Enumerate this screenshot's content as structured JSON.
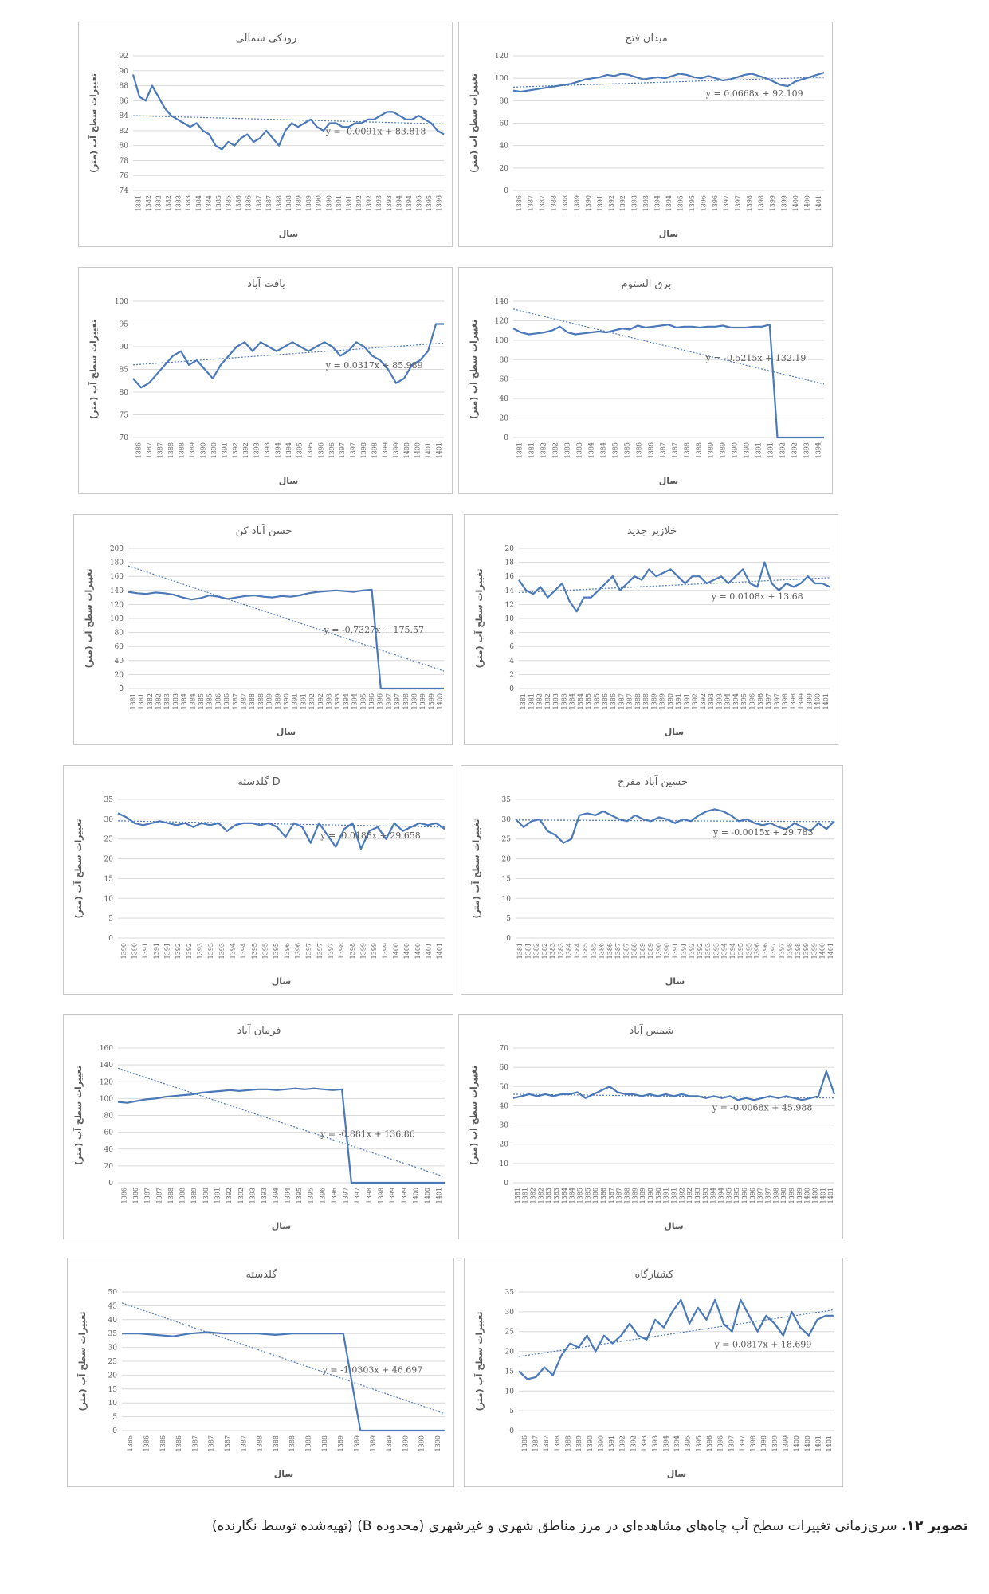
{
  "caption": {
    "prefix": "تصویر ۱۲.",
    "text": " سری‌زمانی تغییرات سطح آب چاه‌های مشاهده‌ای در مرز مناطق شهری و غیرشهری (محدوده B) (تهیه‌شده توسط نگارنده)"
  },
  "colors": {
    "series": "#4a78b8",
    "trend": "#4a78b8",
    "grid": "#d9d9d9"
  },
  "chart_data": [
    {
      "id": "rudaki",
      "type": "line",
      "title": "رودکی شمالی",
      "xlabel": "سال",
      "ylabel": "تغییرات سطح آب (متر)",
      "ylim": [
        74,
        92
      ],
      "ystep": 2,
      "trend_equation": "y = -0.0091x + 83.818",
      "trend": [
        84.0,
        82.9
      ],
      "xticks": [
        "1381",
        "1382",
        "1382",
        "1382",
        "1383",
        "1383",
        "1384",
        "1384",
        "1385",
        "1385",
        "1386",
        "1386",
        "1387",
        "1387",
        "1388",
        "1388",
        "1389",
        "1389",
        "1390",
        "1390",
        "1391",
        "1391",
        "1392",
        "1392",
        "1393",
        "1393",
        "1394",
        "1394",
        "1395",
        "1395",
        "1396"
      ],
      "values": [
        89.5,
        86.5,
        86,
        88,
        86.5,
        85,
        84,
        83.5,
        83,
        82.5,
        83,
        82,
        81.5,
        80,
        79.5,
        80.5,
        80,
        81,
        81.5,
        80.5,
        81,
        82,
        81,
        80,
        82,
        83,
        82.5,
        83,
        83.5,
        82.5,
        82,
        83,
        83,
        82.5,
        82.5,
        83,
        83,
        83.5,
        83.5,
        84,
        84.5,
        84.5,
        84,
        83.5,
        83.5,
        84,
        83.5,
        83,
        82,
        81.5
      ]
    },
    {
      "id": "meydan",
      "type": "line",
      "title": "میدان فتح",
      "xlabel": "سال",
      "ylabel": "تغییرات سطح آب (متر)",
      "ylim": [
        0,
        120
      ],
      "ystep": 20,
      "trend_equation": "y = 0.0668x + 92.109",
      "trend": [
        92.1,
        101
      ],
      "xticks": [
        "1386",
        "1387",
        "1387",
        "1388",
        "1388",
        "1389",
        "1390",
        "1391",
        "1392",
        "1392",
        "1393",
        "1393",
        "1394",
        "1394",
        "1395",
        "1395",
        "1396",
        "1396",
        "1397",
        "1397",
        "1398",
        "1398",
        "1399",
        "1399",
        "1400",
        "1400",
        "1401"
      ],
      "values": [
        89,
        88,
        89,
        90,
        91,
        92,
        93,
        94,
        95,
        97,
        99,
        100,
        101,
        103,
        102,
        104,
        103,
        101,
        99,
        100,
        101,
        100,
        102,
        104,
        103,
        101,
        100,
        102,
        100,
        98,
        99,
        101,
        103,
        104,
        102,
        100,
        97,
        94,
        93,
        97,
        99,
        101,
        103,
        105
      ]
    },
    {
      "id": "yaftabad",
      "type": "line",
      "title": "یافت آباد",
      "xlabel": "سال",
      "ylabel": "تغییرات سطح آب (متر)",
      "ylim": [
        70,
        100
      ],
      "ystep": 5,
      "trend_equation": "y = 0.0317x + 85.989",
      "trend": [
        86,
        90.8
      ],
      "xticks": [
        "1386",
        "1387",
        "1387",
        "1388",
        "1388",
        "1389",
        "1390",
        "1390",
        "1391",
        "1392",
        "1392",
        "1393",
        "1393",
        "1394",
        "1394",
        "1395",
        "1395",
        "1396",
        "1396",
        "1397",
        "1397",
        "1398",
        "1398",
        "1399",
        "1399",
        "1400",
        "1400",
        "1401",
        "1401"
      ],
      "values": [
        83,
        81,
        82,
        84,
        86,
        88,
        89,
        86,
        87,
        85,
        83,
        86,
        88,
        90,
        91,
        89,
        91,
        90,
        89,
        90,
        91,
        90,
        89,
        90,
        91,
        90,
        88,
        89,
        91,
        90,
        88,
        87,
        85,
        82,
        83,
        86,
        87,
        89,
        95,
        95
      ]
    },
    {
      "id": "barq",
      "type": "line",
      "title": "برق الستوم",
      "xlabel": "سال",
      "ylabel": "تغییرات سطح آب (متر)",
      "ylim": [
        0,
        140
      ],
      "ystep": 20,
      "trend_equation": "y = -0.5215x + 132.19",
      "trend": [
        132,
        55
      ],
      "xticks": [
        "1381",
        "1381",
        "1382",
        "1382",
        "1383",
        "1383",
        "1384",
        "1384",
        "1385",
        "1385",
        "1386",
        "1386",
        "1387",
        "1387",
        "1388",
        "1388",
        "1389",
        "1389",
        "1390",
        "1390",
        "1391",
        "1391",
        "1392",
        "1392",
        "1393",
        "1394"
      ],
      "values": [
        112,
        108,
        106,
        107,
        108,
        110,
        114,
        108,
        106,
        107,
        108,
        109,
        108,
        110,
        112,
        111,
        115,
        113,
        114,
        115,
        116,
        113,
        114,
        114,
        113,
        114,
        114,
        115,
        113,
        113,
        113,
        114,
        114,
        116,
        0,
        0,
        0,
        0,
        0,
        0,
        0
      ]
    },
    {
      "id": "hasanabad",
      "type": "line",
      "title": "حسن آباد کن",
      "xlabel": "سال",
      "ylabel": "تغییرات سطح آب (متر)",
      "ylim": [
        0,
        200
      ],
      "ystep": 20,
      "trend_equation": "y = -0.7327x + 175.57",
      "trend": [
        175,
        25
      ],
      "xticks": [
        "1381",
        "1381",
        "1382",
        "1382",
        "1383",
        "1383",
        "1384",
        "1384",
        "1385",
        "1385",
        "1386",
        "1386",
        "1387",
        "1387",
        "1388",
        "1388",
        "1389",
        "1389",
        "1390",
        "1391",
        "1391",
        "1392",
        "1392",
        "1393",
        "1393",
        "1394",
        "1394",
        "1395",
        "1396",
        "1396",
        "1397",
        "1397",
        "1398",
        "1398",
        "1399",
        "1399",
        "1400"
      ],
      "values": [
        138,
        136,
        135,
        137,
        136,
        134,
        130,
        127,
        129,
        133,
        131,
        128,
        130,
        132,
        133,
        131,
        130,
        132,
        131,
        133,
        136,
        138,
        139,
        140,
        139,
        138,
        140,
        141,
        0,
        0,
        0,
        0,
        0,
        0,
        0,
        0
      ]
    },
    {
      "id": "khalazir",
      "type": "line",
      "title": "خلازیر جدید",
      "xlabel": "سال",
      "ylabel": "تغییرات سطح آب (متر)",
      "ylim": [
        0,
        20
      ],
      "ystep": 2,
      "trend_equation": "y = 0.0108x + 13.68",
      "trend": [
        13.7,
        15.8
      ],
      "xticks": [
        "1381",
        "1381",
        "1382",
        "1382",
        "1383",
        "1383",
        "1384",
        "1384",
        "1385",
        "1385",
        "1386",
        "1386",
        "1387",
        "1387",
        "1388",
        "1388",
        "1389",
        "1389",
        "1390",
        "1391",
        "1391",
        "1392",
        "1392",
        "1393",
        "1393",
        "1394",
        "1394",
        "1395",
        "1396",
        "1396",
        "1397",
        "1397",
        "1398",
        "1398",
        "1399",
        "1399",
        "1400",
        "1401"
      ],
      "values": [
        15.5,
        14,
        13.5,
        14.5,
        13,
        14,
        15,
        12.5,
        11,
        13,
        13,
        14,
        15,
        16,
        14,
        15,
        16,
        15.5,
        17,
        16,
        16.5,
        17,
        16,
        15,
        16,
        16,
        15,
        15.5,
        16,
        15,
        16,
        17,
        15,
        14.5,
        18,
        15,
        14,
        15,
        14.5,
        15,
        16,
        15,
        15,
        14.5
      ]
    },
    {
      "id": "goldasteh_d",
      "type": "line",
      "title": "گلدسته D",
      "xlabel": "سال",
      "ylabel": "تغییرات سطح آب (متر)",
      "ylim": [
        0,
        35
      ],
      "ystep": 5,
      "trend_equation": "y = -0.0188x + 29.658",
      "trend": [
        29.6,
        28
      ],
      "xticks": [
        "1390",
        "1390",
        "1391",
        "1391",
        "1391",
        "1392",
        "1392",
        "1393",
        "1393",
        "1393",
        "1394",
        "1394",
        "1395",
        "1395",
        "1395",
        "1396",
        "1396",
        "1397",
        "1397",
        "1397",
        "1398",
        "1398",
        "1399",
        "1399",
        "1399",
        "1400",
        "1400",
        "1400",
        "1401",
        "1401"
      ],
      "values": [
        31.5,
        30.5,
        29,
        28.5,
        29,
        29.5,
        29,
        28.5,
        29,
        28,
        29,
        28.5,
        29,
        27,
        28.5,
        29,
        29,
        28.5,
        29,
        28,
        25.5,
        29,
        28,
        24,
        29,
        26,
        23,
        27.5,
        29,
        22.5,
        27,
        28,
        25,
        29,
        27,
        28,
        29,
        28.5,
        29,
        27.5
      ]
    },
    {
      "id": "hosseinabad",
      "type": "line",
      "title": "حسین آباد مفرح",
      "xlabel": "سال",
      "ylabel": "تغییرات سطح آب (متر)",
      "ylim": [
        0,
        35
      ],
      "ystep": 5,
      "trend_equation": "y = -0.0015x + 29.783",
      "trend": [
        29.8,
        29.4
      ],
      "xticks": [
        "1381",
        "1381",
        "1382",
        "1382",
        "1383",
        "1383",
        "1384",
        "1384",
        "1385",
        "1385",
        "1386",
        "1386",
        "1387",
        "1387",
        "1388",
        "1389",
        "1389",
        "1390",
        "1390",
        "1391",
        "1391",
        "1392",
        "1392",
        "1393",
        "1393",
        "1394",
        "1394",
        "1395",
        "1395",
        "1396",
        "1396",
        "1397",
        "1397",
        "1398",
        "1398",
        "1399",
        "1399",
        "1400",
        "1401"
      ],
      "values": [
        30,
        28,
        29.5,
        30,
        27,
        26,
        24,
        25,
        31,
        31.5,
        31,
        32,
        31,
        30,
        29.5,
        31,
        30,
        29.5,
        30.5,
        30,
        29,
        30,
        29.5,
        31,
        32,
        32.5,
        32,
        31,
        29.5,
        30,
        29,
        28.5,
        29,
        28,
        27.5,
        29,
        28,
        27,
        29,
        27.5,
        29.5
      ]
    },
    {
      "id": "farmanabad",
      "type": "line",
      "title": "فرمان آباد",
      "xlabel": "سال",
      "ylabel": "تغییرات سطح آب (متر)",
      "ylim": [
        0,
        160
      ],
      "ystep": 20,
      "trend_equation": "y = -0.881x + 136.86",
      "trend": [
        136,
        7
      ],
      "xticks": [
        "1386",
        "1386",
        "1387",
        "1387",
        "1388",
        "1388",
        "1389",
        "1390",
        "1391",
        "1392",
        "1392",
        "1393",
        "1393",
        "1394",
        "1394",
        "1395",
        "1395",
        "1396",
        "1396",
        "1397",
        "1397",
        "1398",
        "1398",
        "1399",
        "1399",
        "1400",
        "1400",
        "1401"
      ],
      "values": [
        96,
        95,
        97,
        99,
        100,
        102,
        103,
        104,
        105,
        107,
        108,
        109,
        110,
        109,
        110,
        111,
        111,
        110,
        111,
        112,
        111,
        112,
        111,
        110,
        111,
        0,
        0,
        0,
        0,
        0,
        0,
        0,
        0,
        0,
        0,
        0
      ]
    },
    {
      "id": "shamsabad",
      "type": "line",
      "title": "شمس آباد",
      "xlabel": "سال",
      "ylabel": "تغییرات سطح آب (متر)",
      "ylim": [
        0,
        70
      ],
      "ystep": 10,
      "trend_equation": "y = -0.0068x + 45.988",
      "trend": [
        46,
        44
      ],
      "xticks": [
        "1381",
        "1381",
        "1382",
        "1382",
        "1383",
        "1383",
        "1384",
        "1384",
        "1385",
        "1385",
        "1386",
        "1386",
        "1387",
        "1387",
        "1388",
        "1389",
        "1389",
        "1390",
        "1390",
        "1391",
        "1391",
        "1392",
        "1392",
        "1393",
        "1393",
        "1394",
        "1394",
        "1395",
        "1395",
        "1396",
        "1396",
        "1397",
        "1397",
        "1398",
        "1398",
        "1399",
        "1399",
        "1400",
        "1400",
        "1401",
        "1401"
      ],
      "values": [
        44,
        45,
        46,
        45,
        46,
        45,
        46,
        46,
        47,
        44,
        46,
        48,
        50,
        47,
        46,
        46,
        45,
        46,
        45,
        46,
        45,
        46,
        45,
        45,
        44,
        45,
        44,
        45,
        43,
        44,
        43,
        44,
        45,
        44,
        45,
        44,
        43,
        44,
        45,
        58,
        46
      ]
    },
    {
      "id": "goldasteh",
      "type": "line",
      "title": "گلدسته",
      "xlabel": "سال",
      "ylabel": "تغییرات سطح آب (متر)",
      "ylim": [
        0,
        50
      ],
      "ystep": 5,
      "trend_equation": "y = -1.0303x + 46.697",
      "trend": [
        46,
        6
      ],
      "xticks": [
        "1386",
        "1386",
        "1386",
        "1386",
        "1387",
        "1387",
        "1387",
        "1387",
        "1388",
        "1388",
        "1388",
        "1388",
        "1388",
        "1389",
        "1389",
        "1389",
        "1389",
        "1390",
        "1390",
        "1390"
      ],
      "values": [
        35,
        35,
        34.5,
        34,
        35,
        35.5,
        35,
        35,
        35,
        34.5,
        35,
        35,
        35,
        35,
        0,
        0,
        0,
        0,
        0,
        0
      ]
    },
    {
      "id": "koshtargah",
      "type": "line",
      "title": "کشتارگاه",
      "xlabel": "سال",
      "ylabel": "تغییرات سطح آب (متر)",
      "ylim": [
        0,
        35
      ],
      "ystep": 5,
      "trend_equation": "y = 0.0817x + 18.699",
      "trend": [
        18.7,
        30.5
      ],
      "xticks": [
        "1386",
        "1387",
        "1387",
        "1388",
        "1388",
        "1389",
        "1390",
        "1390",
        "1391",
        "1392",
        "1392",
        "1393",
        "1393",
        "1394",
        "1394",
        "1395",
        "1395",
        "1396",
        "1396",
        "1397",
        "1397",
        "1398",
        "1398",
        "1399",
        "1399",
        "1400",
        "1400",
        "1401",
        "1401"
      ],
      "values": [
        15,
        13,
        13.5,
        16,
        14,
        19,
        22,
        21,
        24,
        20,
        24,
        22,
        24,
        27,
        24,
        23,
        28,
        26,
        30,
        33,
        27,
        31,
        28,
        33,
        27,
        25,
        33,
        29,
        25,
        29,
        27,
        24,
        30,
        26,
        24,
        28,
        29,
        29
      ]
    }
  ]
}
